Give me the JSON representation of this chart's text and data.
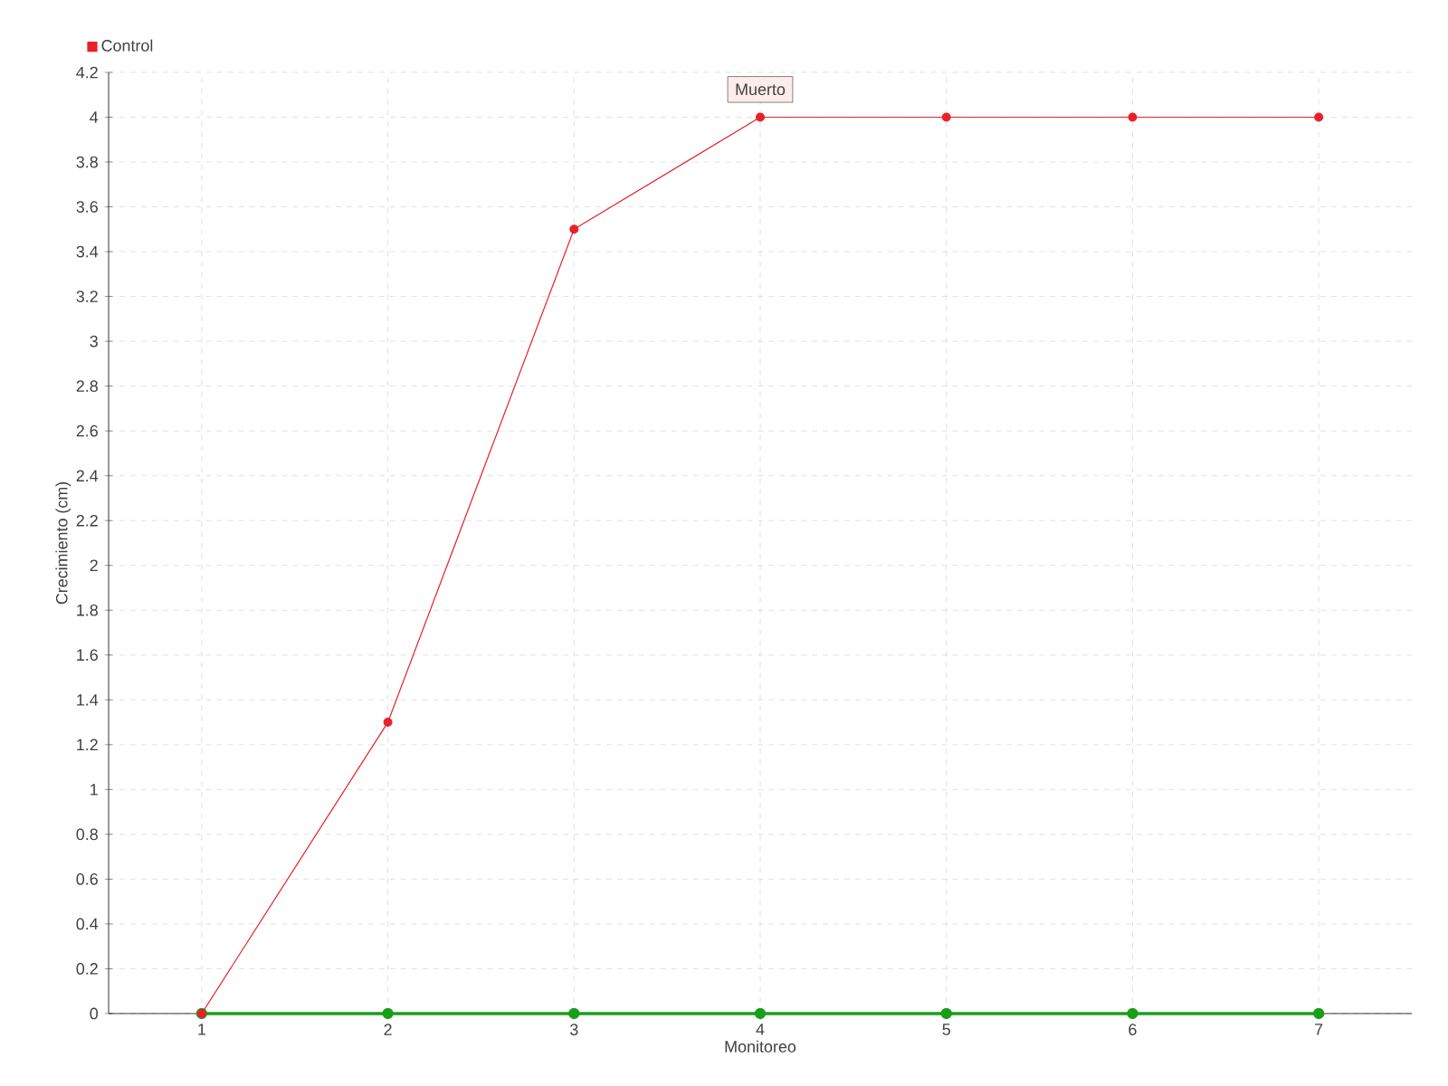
{
  "chart_data": {
    "type": "line",
    "xlabel": "Monitoreo",
    "ylabel": "Crecimiento (cm)",
    "categories": [
      "1",
      "2",
      "3",
      "4",
      "5",
      "6",
      "7"
    ],
    "series": [
      {
        "color": "#1a9e1a",
        "values": [
          0,
          0,
          0,
          0,
          0,
          0,
          0
        ]
      },
      {
        "name": "Control",
        "color": "#e8202a",
        "values": [
          0,
          1.3,
          3.5,
          4,
          4,
          4,
          4
        ]
      }
    ],
    "ylim": [
      0,
      4.2
    ],
    "yticks": [
      0,
      0.2,
      0.4,
      0.6,
      0.8,
      1,
      1.2,
      1.4,
      1.6,
      1.8,
      2,
      2.2,
      2.4,
      2.6,
      2.8,
      3,
      3.2,
      3.4,
      3.6,
      3.8,
      4,
      4.2
    ],
    "annotations": [
      {
        "text": "Muerto",
        "x": "4",
        "y": 4
      }
    ],
    "grid": true,
    "legend": "top left",
    "marker": "circle"
  }
}
